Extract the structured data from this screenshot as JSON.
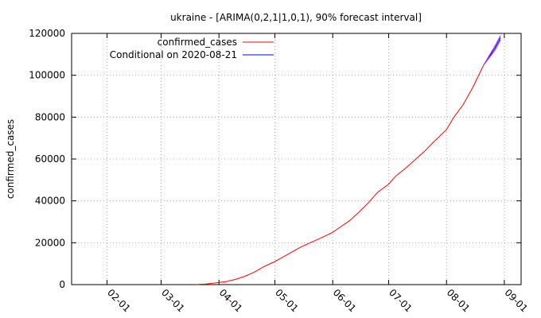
{
  "chart_data": {
    "type": "line",
    "title": "ukraine -  [ARIMA(0,2,1|1,0,1), 90% forecast interval]",
    "xlabel": "",
    "ylabel": "confirmed_cases",
    "xlim": [
      "2020-01-13",
      "2020-09-10"
    ],
    "ylim": [
      0,
      120000
    ],
    "x_ticks": [
      "02-01",
      "03-01",
      "04-01",
      "05-01",
      "06-01",
      "07-01",
      "08-01",
      "09-01"
    ],
    "x_tick_dates": [
      "2020-02-01",
      "2020-03-01",
      "2020-04-01",
      "2020-05-01",
      "2020-06-01",
      "2020-07-01",
      "2020-08-01",
      "2020-09-01"
    ],
    "y_ticks": [
      "0",
      "20000",
      "40000",
      "60000",
      "80000",
      "100000",
      "120000"
    ],
    "y_tick_values": [
      0,
      20000,
      40000,
      60000,
      80000,
      100000,
      120000
    ],
    "grid": true,
    "legend_position": "top-left",
    "series": [
      {
        "name": "confirmed_cases",
        "color": "#ff0000",
        "x": [
          "2020-03-20",
          "2020-03-25",
          "2020-04-01",
          "2020-04-05",
          "2020-04-10",
          "2020-04-15",
          "2020-04-20",
          "2020-04-25",
          "2020-05-01",
          "2020-05-05",
          "2020-05-10",
          "2020-05-15",
          "2020-05-20",
          "2020-05-25",
          "2020-06-01",
          "2020-06-05",
          "2020-06-10",
          "2020-06-15",
          "2020-06-20",
          "2020-06-25",
          "2020-07-01",
          "2020-07-05",
          "2020-07-10",
          "2020-07-15",
          "2020-07-20",
          "2020-07-25",
          "2020-08-01",
          "2020-08-05",
          "2020-08-10",
          "2020-08-15",
          "2020-08-21"
        ],
        "y": [
          30,
          300,
          1000,
          1500,
          2500,
          4000,
          6000,
          8500,
          11000,
          13000,
          15500,
          18000,
          20000,
          22000,
          25000,
          27500,
          30500,
          34500,
          39000,
          44000,
          48000,
          52000,
          55500,
          59500,
          63500,
          68000,
          74000,
          80000,
          86000,
          94000,
          105000
        ]
      },
      {
        "name": "Conditional on 2020-08-21",
        "color": "#0000ff",
        "x": [
          "2020-08-21",
          "2020-08-24",
          "2020-08-27",
          "2020-08-30"
        ],
        "y": [
          105000,
          109000,
          113000,
          118000
        ],
        "upper": [
          105000,
          109500,
          114000,
          119000
        ],
        "lower": [
          105000,
          108500,
          112000,
          117000
        ]
      }
    ]
  }
}
